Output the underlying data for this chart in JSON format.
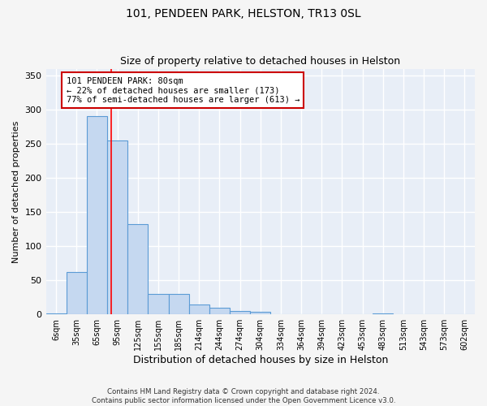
{
  "title1": "101, PENDEEN PARK, HELSTON, TR13 0SL",
  "title2": "Size of property relative to detached houses in Helston",
  "xlabel": "Distribution of detached houses by size in Helston",
  "ylabel": "Number of detached properties",
  "footer": "Contains HM Land Registry data © Crown copyright and database right 2024.\nContains public sector information licensed under the Open Government Licence v3.0.",
  "categories": [
    "6sqm",
    "35sqm",
    "65sqm",
    "95sqm",
    "125sqm",
    "155sqm",
    "185sqm",
    "214sqm",
    "244sqm",
    "274sqm",
    "304sqm",
    "334sqm",
    "364sqm",
    "394sqm",
    "423sqm",
    "453sqm",
    "483sqm",
    "513sqm",
    "543sqm",
    "573sqm",
    "602sqm"
  ],
  "values": [
    2,
    62,
    290,
    255,
    132,
    30,
    30,
    15,
    10,
    5,
    4,
    0,
    0,
    0,
    0,
    0,
    2,
    0,
    0,
    0,
    0
  ],
  "bar_color": "#c5d8f0",
  "bar_edge_color": "#5b9bd5",
  "red_line_x": 2.7,
  "annotation_text": "101 PENDEEN PARK: 80sqm\n← 22% of detached houses are smaller (173)\n77% of semi-detached houses are larger (613) →",
  "annotation_box_color": "#ffffff",
  "annotation_box_edge": "#cc0000",
  "ylim": [
    0,
    360
  ],
  "yticks": [
    0,
    50,
    100,
    150,
    200,
    250,
    300,
    350
  ],
  "background_color": "#e8eef7",
  "grid_color": "#ffffff",
  "fig_facecolor": "#f5f5f5",
  "title1_fontsize": 10,
  "title2_fontsize": 9,
  "xlabel_fontsize": 9,
  "ylabel_fontsize": 8,
  "annotation_fontsize": 7.5
}
